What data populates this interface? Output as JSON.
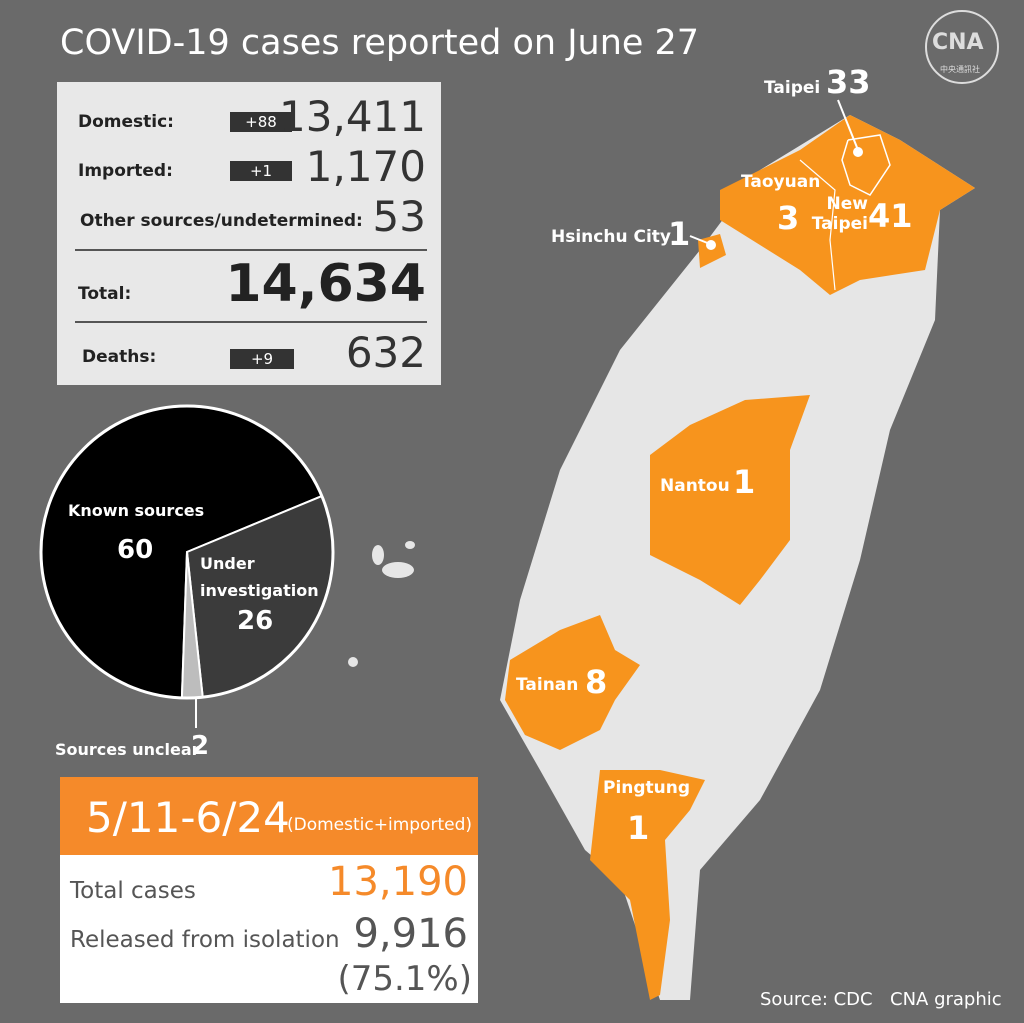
{
  "title": "COVID-19 cases reported on June 27",
  "logo": {
    "text": "CNA",
    "subtitle": "中央通訊社"
  },
  "summary": {
    "rows": [
      {
        "label": "Domestic:",
        "change": "+88",
        "value": "13,411"
      },
      {
        "label": "Imported:",
        "change": "+1",
        "value": "1,170"
      },
      {
        "label": "Other sources/undetermined:",
        "value": "53"
      }
    ],
    "total": {
      "label": "Total:",
      "value": "14,634"
    },
    "deaths": {
      "label": "Deaths:",
      "change": "+9",
      "value": "632"
    }
  },
  "chart_data": {
    "type": "pie",
    "categories": [
      "Known sources",
      "Under investigation",
      "Sources unclear"
    ],
    "values": [
      60,
      26,
      2
    ],
    "colors": [
      "#000000",
      "#3b3b3b",
      "#bdbdbd"
    ]
  },
  "period": {
    "range": "5/11-6/24",
    "note": "(Domestic+imported)",
    "rows": [
      {
        "label": "Total cases",
        "value": "13,190"
      },
      {
        "label": "Released from isolation",
        "value": "9,916",
        "share": "(75.1%)"
      }
    ]
  },
  "map": {
    "cities": [
      {
        "name": "Taipei",
        "cases": "33"
      },
      {
        "name": "New Taipei",
        "cases": "41"
      },
      {
        "name": "Taoyuan",
        "cases": "3"
      },
      {
        "name": "Hsinchu City",
        "cases": "1"
      },
      {
        "name": "Nantou",
        "cases": "1"
      },
      {
        "name": "Tainan",
        "cases": "8"
      },
      {
        "name": "Pingtung",
        "cases": "1"
      }
    ]
  },
  "footer": {
    "source": "Source: CDC",
    "credit": "CNA graphic"
  }
}
